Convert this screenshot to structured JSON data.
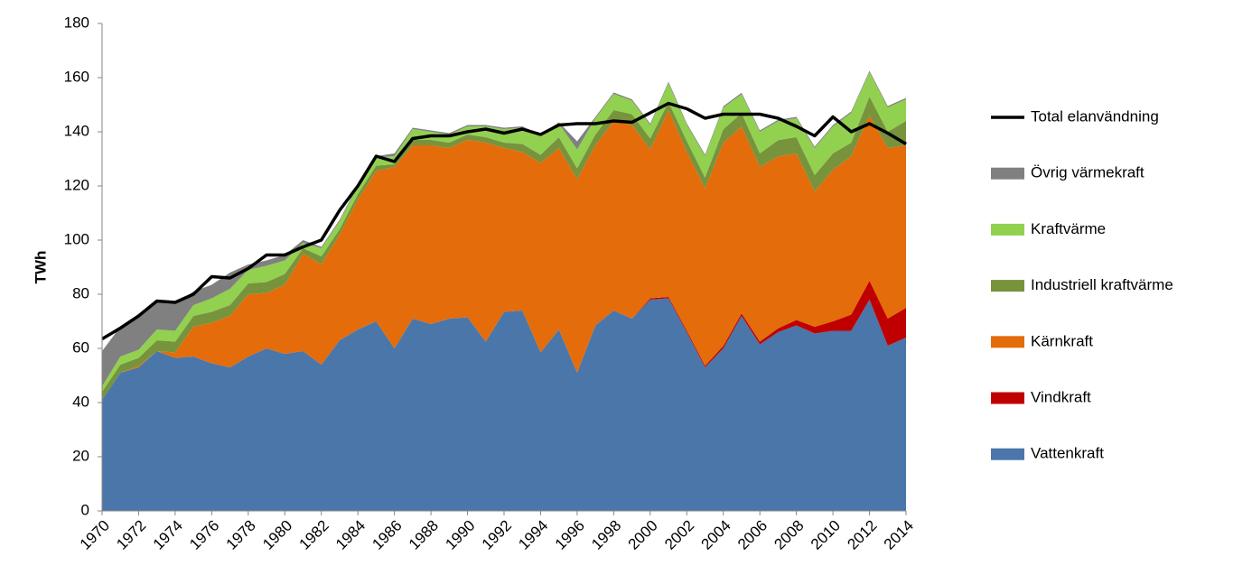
{
  "chart_data": {
    "type": "area",
    "stacked": true,
    "y_label": "TWh",
    "x": [
      1970,
      1971,
      1972,
      1973,
      1974,
      1975,
      1976,
      1977,
      1978,
      1979,
      1980,
      1981,
      1982,
      1983,
      1984,
      1985,
      1986,
      1987,
      1988,
      1989,
      1990,
      1991,
      1992,
      1993,
      1994,
      1995,
      1996,
      1997,
      1998,
      1999,
      2000,
      2001,
      2002,
      2003,
      2004,
      2005,
      2006,
      2007,
      2008,
      2009,
      2010,
      2011,
      2012,
      2013,
      2014
    ],
    "xlim": [
      1970,
      2014
    ],
    "xticks": [
      1970,
      1972,
      1974,
      1976,
      1978,
      1980,
      1982,
      1984,
      1986,
      1988,
      1990,
      1992,
      1994,
      1996,
      1998,
      2000,
      2002,
      2004,
      2006,
      2008,
      2010,
      2012,
      2014
    ],
    "ylim": [
      0,
      180
    ],
    "yticks": [
      0,
      20,
      40,
      60,
      80,
      100,
      120,
      140,
      160,
      180
    ],
    "grid": false,
    "legend": "right",
    "series": [
      {
        "name": "Vattenkraft",
        "color": "#4a76aa",
        "values": [
          41,
          51,
          53,
          59,
          56.5,
          57,
          54.5,
          53,
          57,
          60,
          58,
          59,
          54,
          63,
          67,
          70,
          60,
          71,
          69,
          71,
          71.5,
          62.5,
          73.5,
          74,
          58.5,
          67,
          51,
          68.5,
          74,
          71,
          78,
          78.5,
          66,
          53,
          60,
          72,
          61.5,
          66,
          68.5,
          65.5,
          66.5,
          66.5,
          78,
          61,
          64
        ]
      },
      {
        "name": "Vindkraft",
        "color": "#c00000",
        "values": [
          0,
          0,
          0,
          0,
          0,
          0,
          0,
          0,
          0,
          0,
          0,
          0,
          0,
          0,
          0,
          0,
          0,
          0,
          0,
          0,
          0,
          0,
          0,
          0,
          0,
          0,
          0,
          0,
          0,
          0,
          0.5,
          0.5,
          0.6,
          0.6,
          0.9,
          0.9,
          1,
          1.4,
          2,
          2.5,
          3.5,
          6,
          7,
          10,
          11
        ]
      },
      {
        "name": "Kärnkraft",
        "color": "#e46c0a",
        "values": [
          0,
          0,
          0.5,
          0,
          2,
          11,
          15,
          19,
          23,
          20.5,
          25.5,
          36,
          37,
          39,
          48,
          55.5,
          67,
          64,
          66,
          63,
          65.5,
          73.5,
          60.5,
          58.5,
          70,
          67,
          71.5,
          66.5,
          70,
          71.5,
          55,
          69,
          66,
          65.5,
          75,
          69,
          64.5,
          63.5,
          61.5,
          50,
          56,
          58.5,
          61,
          63,
          60
        ]
      },
      {
        "name": "Industriell kraftvärme",
        "color": "#77933c",
        "values": [
          3,
          3,
          3,
          4,
          4,
          4,
          4,
          4,
          4,
          4,
          4,
          2,
          3,
          2,
          2,
          2,
          1,
          2,
          2,
          2,
          2,
          2,
          2,
          3,
          3,
          4,
          4,
          4,
          4,
          4,
          4,
          3,
          4,
          4,
          5,
          5,
          5,
          6,
          6,
          6,
          6,
          5,
          7,
          6,
          9
        ]
      },
      {
        "name": "Kraftvärme",
        "color": "#92d050",
        "values": [
          2,
          3,
          3,
          4,
          4,
          4,
          5,
          6,
          5,
          6,
          5,
          2,
          3,
          3,
          3,
          3,
          3,
          4,
          3,
          3,
          3,
          4,
          5,
          6,
          7,
          5,
          7,
          6,
          6,
          5,
          5,
          7,
          6,
          8,
          8,
          7,
          8,
          7,
          7,
          10,
          10,
          11,
          9,
          9,
          8
        ]
      },
      {
        "name": "Övrig värmekraft",
        "color": "#808080",
        "values": [
          13,
          11,
          12,
          10,
          10,
          5,
          5,
          6,
          2,
          2,
          2,
          1,
          0.5,
          0.5,
          0.5,
          0.5,
          1,
          0.5,
          0.5,
          0.5,
          0.5,
          0.5,
          0.5,
          0.5,
          0.5,
          0.5,
          3,
          0.5,
          0.5,
          0.5,
          0.5,
          0.5,
          0.5,
          0.5,
          0.5,
          0.5,
          0.5,
          0.5,
          0.5,
          0.5,
          0.5,
          0.5,
          0.5,
          0.5,
          0.5
        ]
      },
      {
        "name": "Total elanvändning",
        "color": "#000000",
        "type": "line",
        "values": [
          63.5,
          67.5,
          72,
          77.5,
          77,
          80,
          86.5,
          86,
          89.5,
          94.5,
          94.5,
          97.5,
          100,
          111,
          120,
          131,
          129,
          137.5,
          138.5,
          138.5,
          140,
          141,
          139.5,
          141,
          139,
          142.5,
          143,
          143,
          144,
          143.5,
          147,
          150.5,
          148.5,
          145,
          146.5,
          146.5,
          146.5,
          145,
          142,
          138.5,
          145.5,
          140,
          143,
          139.5,
          135.5
        ]
      }
    ]
  }
}
